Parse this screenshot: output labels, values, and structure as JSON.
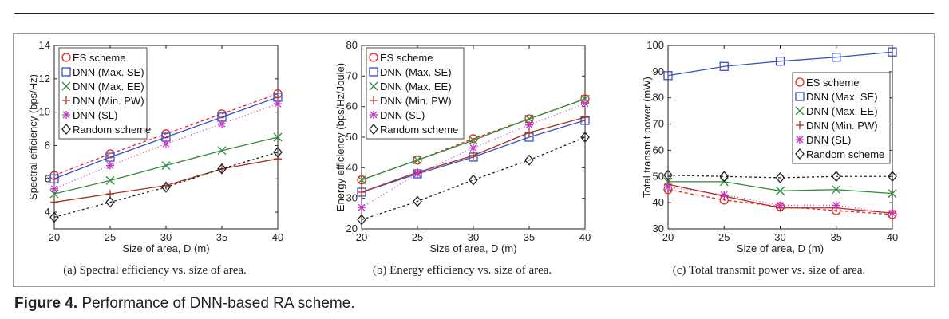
{
  "caption": {
    "label": "Figure 4.",
    "text": "Performance of DNN-based RA scheme."
  },
  "styles": {
    "ES scheme": {
      "color": "#e8231f",
      "marker": "circle",
      "dash": "4,3"
    },
    "DNN (Max. SE)": {
      "color": "#3a4ec0",
      "marker": "square",
      "dash": ""
    },
    "DNN (Max. EE)": {
      "color": "#2f8a3a",
      "marker": "x",
      "dash": ""
    },
    "DNN (Min. PW)": {
      "color": "#a8321e",
      "marker": "plus",
      "dash": ""
    },
    "DNN (SL)": {
      "color": "#c238c2",
      "marker": "star",
      "dash": "1,3"
    },
    "Random scheme": {
      "color": "#222222",
      "marker": "diamond",
      "dash": "3,3"
    }
  },
  "chart_data": [
    {
      "type": "line",
      "subcaption": "(a)  Spectral efficiency vs. size of area.",
      "xlabel": "Size of area, D (m)",
      "ylabel": "Spectral efficiency (bps/Hz)",
      "xlim": [
        20,
        40
      ],
      "ylim": [
        3,
        14
      ],
      "xticks": [
        20,
        25,
        30,
        35,
        40
      ],
      "yticks": [
        4,
        6,
        8,
        10,
        12,
        14
      ],
      "legend_position": "top-left",
      "x": [
        20,
        25,
        30,
        35,
        40
      ],
      "series": [
        {
          "name": "ES scheme",
          "values": [
            6.2,
            7.5,
            8.7,
            9.9,
            11.1
          ]
        },
        {
          "name": "DNN (Max. SE)",
          "values": [
            6.0,
            7.3,
            8.5,
            9.7,
            10.9
          ]
        },
        {
          "name": "DNN (Max. EE)",
          "values": [
            5.1,
            5.9,
            6.8,
            7.7,
            8.5
          ]
        },
        {
          "name": "DNN (Min. PW)",
          "values": [
            4.6,
            5.1,
            5.6,
            6.6,
            7.2
          ]
        },
        {
          "name": "DNN (SL)",
          "values": [
            5.4,
            6.8,
            8.1,
            9.3,
            10.5
          ]
        },
        {
          "name": "Random scheme",
          "values": [
            3.7,
            4.6,
            5.5,
            6.6,
            7.6
          ]
        }
      ]
    },
    {
      "type": "line",
      "subcaption": "(b)  Energy efficiency vs. size of area.",
      "xlabel": "Size of area, D (m)",
      "ylabel": "Energy efficiency (bps/Hz/Joule)",
      "xlim": [
        20,
        40
      ],
      "ylim": [
        20,
        80
      ],
      "xticks": [
        20,
        25,
        30,
        35,
        40
      ],
      "yticks": [
        20,
        30,
        40,
        50,
        60,
        70,
        80
      ],
      "legend_position": "top-left",
      "x": [
        20,
        25,
        30,
        35,
        40
      ],
      "series": [
        {
          "name": "ES scheme",
          "values": [
            36,
            42.5,
            49.5,
            56,
            62.5
          ]
        },
        {
          "name": "DNN (Max. SE)",
          "values": [
            32,
            38,
            43.5,
            50,
            55.5
          ]
        },
        {
          "name": "DNN (Max. EE)",
          "values": [
            36,
            42.5,
            49,
            56,
            62.5
          ]
        },
        {
          "name": "DNN (Min. PW)",
          "values": [
            32,
            38.5,
            44,
            51.5,
            56.5
          ]
        },
        {
          "name": "DNN (SL)",
          "values": [
            27,
            38,
            46.5,
            54,
            61
          ]
        },
        {
          "name": "Random scheme",
          "values": [
            23,
            29,
            36,
            42.5,
            50
          ]
        }
      ]
    },
    {
      "type": "line",
      "subcaption": "(c)  Total transmit power vs. size of area.",
      "xlabel": "Size of area, D (m)",
      "ylabel": "Total transmit power (mW)",
      "xlim": [
        20,
        40
      ],
      "ylim": [
        30,
        100
      ],
      "xticks": [
        20,
        25,
        30,
        35,
        40
      ],
      "yticks": [
        30,
        40,
        50,
        60,
        70,
        80,
        90,
        100
      ],
      "legend_position": "middle-right",
      "x": [
        20,
        25,
        30,
        35,
        40
      ],
      "series": [
        {
          "name": "ES scheme",
          "values": [
            45,
            41,
            38.5,
            37,
            35.5
          ]
        },
        {
          "name": "DNN (Max. SE)",
          "values": [
            88.5,
            92,
            94,
            95.5,
            97.5
          ]
        },
        {
          "name": "DNN (Max. EE)",
          "values": [
            48,
            48,
            44.5,
            45,
            43.5
          ]
        },
        {
          "name": "DNN (Min. PW)",
          "values": [
            47,
            42.5,
            38,
            38,
            36
          ]
        },
        {
          "name": "DNN (SL)",
          "values": [
            46,
            43,
            39,
            39,
            36
          ]
        },
        {
          "name": "Random scheme",
          "values": [
            50.5,
            50,
            49.5,
            50,
            50
          ]
        }
      ]
    }
  ]
}
